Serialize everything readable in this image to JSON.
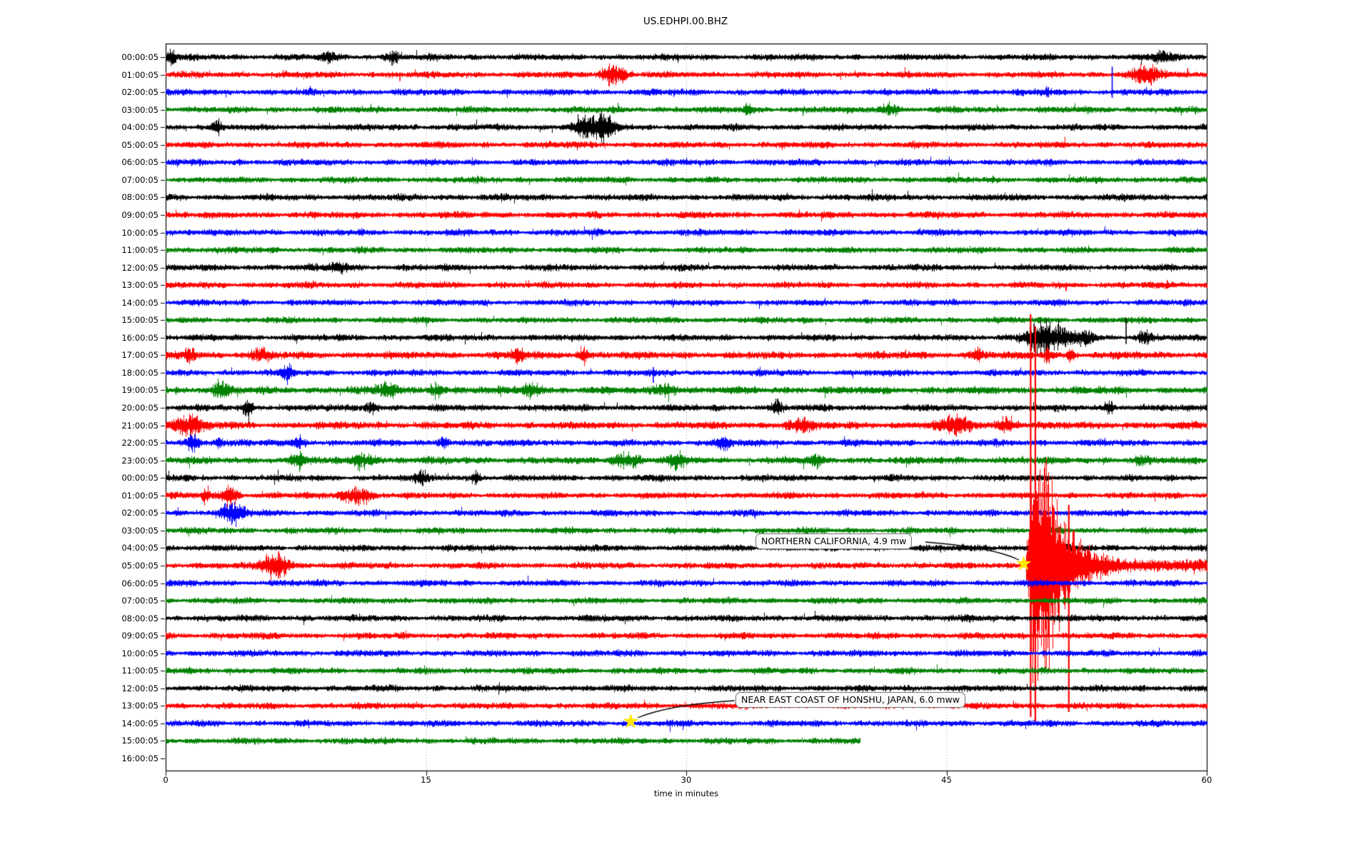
{
  "chart_data": {
    "type": "line",
    "subtype": "seismogram-helicorder-dayplot",
    "title": "US.EDHPI.00.BHZ",
    "xlabel": "time in minutes",
    "x_ticks": [
      0,
      15,
      30,
      45,
      60
    ],
    "xlim": [
      0,
      60
    ],
    "minutes_per_row": 60,
    "grid": {
      "vertical_dotted_at": [
        15,
        30,
        45
      ]
    },
    "color_cycle": [
      "black",
      "red",
      "blue",
      "green"
    ],
    "colors": {
      "black": "#000000",
      "red": "#ff0000",
      "blue": "#0000ff",
      "green": "#008000",
      "grid": "#999999",
      "star": "#ffe800",
      "annotation_border": "#777777",
      "annotation_bg": "#fafafa",
      "axis": "#000000"
    },
    "rows": [
      {
        "label": "00:00:05",
        "color": "black",
        "amp": 3.4,
        "end": 60,
        "bursts": [
          [
            0.3,
            0.5,
            6
          ],
          [
            9.4,
            0.5,
            5
          ],
          [
            13.1,
            0.5,
            6
          ],
          [
            57.4,
            0.8,
            5
          ]
        ],
        "spikes": [
          [
            13.05,
            4,
            12
          ]
        ]
      },
      {
        "label": "01:00:05",
        "color": "red",
        "amp": 3.4,
        "end": 60,
        "bursts": [
          [
            25.8,
            1.0,
            9
          ],
          [
            56.5,
            1.2,
            8
          ]
        ],
        "spikes": [
          [
            13.5,
            3,
            9
          ],
          [
            58.9,
            9,
            3
          ]
        ]
      },
      {
        "label": "02:00:05",
        "color": "blue",
        "amp": 3.4,
        "end": 60,
        "bursts": [
          [
            50.8,
            0.3,
            4
          ]
        ],
        "spikes": [
          [
            54.55,
            36,
            8
          ]
        ]
      },
      {
        "label": "03:00:05",
        "color": "green",
        "amp": 3.4,
        "end": 60,
        "bursts": [
          [
            33.6,
            0.5,
            4
          ],
          [
            41.7,
            0.8,
            6
          ]
        ],
        "spikes": []
      },
      {
        "label": "04:00:05",
        "color": "black",
        "amp": 3.4,
        "end": 60,
        "bursts": [
          [
            2.9,
            0.4,
            6
          ],
          [
            24.2,
            1.1,
            10
          ],
          [
            25.4,
            0.8,
            13
          ]
        ],
        "spikes": [
          [
            25.1,
            18,
            15
          ]
        ]
      },
      {
        "label": "05:00:05",
        "color": "red",
        "amp": 3.4,
        "end": 60,
        "bursts": [],
        "spikes": []
      },
      {
        "label": "06:00:05",
        "color": "blue",
        "amp": 3.4,
        "end": 60,
        "bursts": [],
        "spikes": []
      },
      {
        "label": "07:00:05",
        "color": "green",
        "amp": 3.3,
        "end": 60,
        "bursts": [],
        "spikes": []
      },
      {
        "label": "08:00:05",
        "color": "black",
        "amp": 3.5,
        "end": 60,
        "bursts": [],
        "spikes": []
      },
      {
        "label": "09:00:05",
        "color": "red",
        "amp": 3.5,
        "end": 60,
        "bursts": [],
        "spikes": []
      },
      {
        "label": "10:00:05",
        "color": "blue",
        "amp": 3.4,
        "end": 60,
        "bursts": [],
        "spikes": []
      },
      {
        "label": "11:00:05",
        "color": "green",
        "amp": 3.3,
        "end": 60,
        "bursts": [],
        "spikes": []
      },
      {
        "label": "12:00:05",
        "color": "black",
        "amp": 3.4,
        "end": 60,
        "bursts": [
          [
            10.0,
            1.0,
            4
          ]
        ],
        "spikes": []
      },
      {
        "label": "13:00:05",
        "color": "red",
        "amp": 3.4,
        "end": 60,
        "bursts": [],
        "spikes": []
      },
      {
        "label": "14:00:05",
        "color": "blue",
        "amp": 3.3,
        "end": 60,
        "bursts": [],
        "spikes": []
      },
      {
        "label": "15:00:05",
        "color": "green",
        "amp": 3.3,
        "end": 60,
        "bursts": [],
        "spikes": []
      },
      {
        "label": "16:00:05",
        "color": "black",
        "amp": 3.4,
        "end": 60,
        "bursts": [
          [
            50.4,
            1.3,
            13
          ],
          [
            51.8,
            1.0,
            8
          ],
          [
            53.0,
            0.8,
            6
          ],
          [
            56.4,
            0.5,
            6
          ]
        ],
        "spikes": [
          [
            50.05,
            20,
            16
          ],
          [
            55.35,
            27,
            9
          ]
        ]
      },
      {
        "label": "17:00:05",
        "color": "red",
        "amp": 3.9,
        "end": 60,
        "bursts": [
          [
            1.4,
            0.4,
            7
          ],
          [
            5.5,
            0.8,
            5
          ],
          [
            20.3,
            0.6,
            6
          ],
          [
            24.1,
            0.5,
            6
          ],
          [
            46.8,
            0.4,
            6
          ],
          [
            50.8,
            0.3,
            8
          ],
          [
            52.1,
            0.3,
            7
          ]
        ],
        "spikes": []
      },
      {
        "label": "18:00:05",
        "color": "blue",
        "amp": 3.4,
        "end": 60,
        "bursts": [
          [
            7.0,
            0.5,
            6
          ]
        ],
        "spikes": [
          [
            28.1,
            8,
            14
          ]
        ]
      },
      {
        "label": "19:00:05",
        "color": "green",
        "amp": 3.9,
        "end": 60,
        "bursts": [
          [
            3.2,
            0.8,
            7
          ],
          [
            12.8,
            0.9,
            6
          ],
          [
            15.6,
            0.6,
            7
          ],
          [
            21.0,
            0.8,
            6
          ],
          [
            28.8,
            0.8,
            6
          ]
        ],
        "spikes": []
      },
      {
        "label": "20:00:05",
        "color": "black",
        "amp": 3.5,
        "end": 60,
        "bursts": [
          [
            4.7,
            0.4,
            7
          ],
          [
            11.8,
            0.6,
            5
          ],
          [
            35.2,
            0.5,
            5
          ],
          [
            54.4,
            0.3,
            6
          ]
        ],
        "spikes": []
      },
      {
        "label": "21:00:05",
        "color": "red",
        "amp": 3.9,
        "end": 60,
        "bursts": [
          [
            1.2,
            1.4,
            9
          ],
          [
            36.5,
            1.0,
            6
          ],
          [
            45.5,
            1.5,
            7
          ],
          [
            48.5,
            0.8,
            7
          ]
        ],
        "spikes": []
      },
      {
        "label": "22:00:05",
        "color": "blue",
        "amp": 3.5,
        "end": 60,
        "bursts": [
          [
            1.6,
            0.5,
            8
          ],
          [
            3.0,
            0.4,
            6
          ],
          [
            7.7,
            0.5,
            5
          ],
          [
            16.1,
            0.5,
            5
          ],
          [
            32.2,
            0.6,
            6
          ]
        ],
        "spikes": []
      },
      {
        "label": "23:00:05",
        "color": "green",
        "amp": 3.7,
        "end": 60,
        "bursts": [
          [
            7.7,
            0.7,
            6
          ],
          [
            11.4,
            1.0,
            7
          ],
          [
            26.5,
            1.2,
            6
          ],
          [
            29.5,
            0.8,
            6
          ],
          [
            37.5,
            0.5,
            5
          ],
          [
            56.2,
            0.5,
            5
          ]
        ],
        "spikes": []
      },
      {
        "label": "00:00:05",
        "color": "black",
        "amp": 3.4,
        "end": 60,
        "bursts": [
          [
            14.7,
            0.5,
            5
          ],
          [
            17.9,
            0.3,
            6
          ]
        ],
        "spikes": []
      },
      {
        "label": "01:00:05",
        "color": "red",
        "amp": 3.4,
        "end": 60,
        "bursts": [
          [
            2.3,
            0.3,
            8
          ],
          [
            3.7,
            0.6,
            12
          ],
          [
            10.9,
            1.3,
            8
          ]
        ],
        "spikes": []
      },
      {
        "label": "02:00:05",
        "color": "blue",
        "amp": 3.4,
        "end": 60,
        "bursts": [
          [
            3.9,
            1.0,
            10
          ]
        ],
        "spikes": []
      },
      {
        "label": "03:00:05",
        "color": "green",
        "amp": 3.3,
        "end": 60,
        "bursts": [],
        "spikes": []
      },
      {
        "label": "04:00:05",
        "color": "black",
        "amp": 3.4,
        "end": 60,
        "bursts": [],
        "spikes": []
      },
      {
        "label": "05:00:05",
        "color": "red",
        "amp": 3.4,
        "end": 60,
        "bursts": [
          [
            6.3,
            1.0,
            14
          ]
        ],
        "spikes": [
          [
            6.5,
            20,
            18
          ]
        ],
        "quake": {
          "onset": 49.55,
          "rise_end": 49.95,
          "plateau_end": 50.65,
          "peak": 132,
          "decay_tau": 1.15,
          "tail": 3.5,
          "mega_spikes": [
            [
              49.85,
              352,
              212
            ],
            [
              50.12,
              335,
              218
            ],
            [
              52.05,
              85,
              205
            ]
          ]
        }
      },
      {
        "label": "06:00:05",
        "color": "blue",
        "amp": 3.4,
        "end": 60,
        "bursts": [],
        "spikes": []
      },
      {
        "label": "07:00:05",
        "color": "green",
        "amp": 3.3,
        "end": 60,
        "bursts": [],
        "spikes": []
      },
      {
        "label": "08:00:05",
        "color": "black",
        "amp": 3.4,
        "end": 60,
        "bursts": [],
        "spikes": []
      },
      {
        "label": "09:00:05",
        "color": "red",
        "amp": 3.4,
        "end": 60,
        "bursts": [],
        "spikes": []
      },
      {
        "label": "10:00:05",
        "color": "blue",
        "amp": 3.4,
        "end": 60,
        "bursts": [],
        "spikes": []
      },
      {
        "label": "11:00:05",
        "color": "green",
        "amp": 3.3,
        "end": 60,
        "bursts": [],
        "spikes": []
      },
      {
        "label": "12:00:05",
        "color": "black",
        "amp": 3.4,
        "end": 60,
        "bursts": [],
        "spikes": []
      },
      {
        "label": "13:00:05",
        "color": "red",
        "amp": 3.4,
        "end": 60,
        "bursts": [],
        "spikes": []
      },
      {
        "label": "14:00:05",
        "color": "blue",
        "amp": 3.4,
        "end": 60,
        "bursts": [],
        "spikes": []
      },
      {
        "label": "15:00:05",
        "color": "green",
        "amp": 3.3,
        "end": 40,
        "bursts": [],
        "spikes": []
      },
      {
        "label": "16:00:05",
        "color": "black",
        "amp": 0,
        "end": 0,
        "bursts": [],
        "spikes": []
      }
    ],
    "events": [
      {
        "label": "NORTHERN CALIFORNIA, 4.9 mw",
        "row_index": 29,
        "row_time": "05:00:05",
        "minute": 49.45,
        "marker": "yellow-star"
      },
      {
        "label": "NEAR EAST COAST OF HONSHU, JAPAN, 6.0 mww",
        "row_index": 38,
        "row_time": "14:00:05",
        "minute": 26.8,
        "marker": "yellow-star"
      }
    ],
    "notes": {
      "last_trace_partial": "15:00:05 day 2 ends at minute 40",
      "empty_row": "16:00:05 day 2 has no data"
    }
  }
}
